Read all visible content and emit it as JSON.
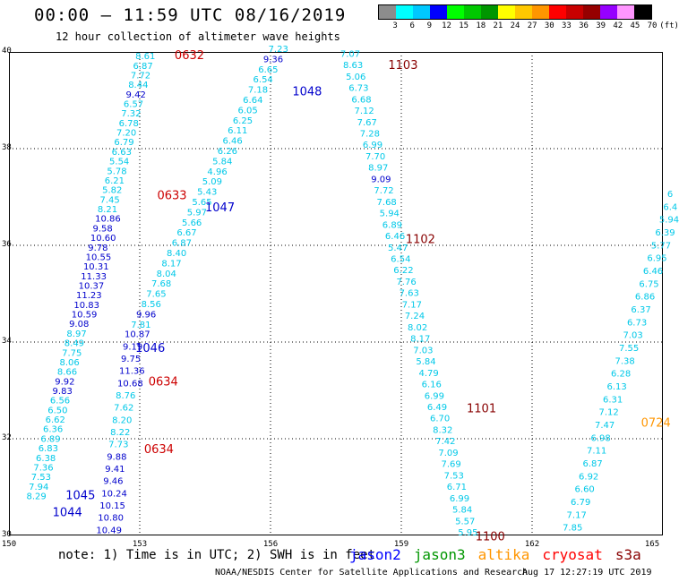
{
  "header": {
    "title": "00:00 – 11:59 UTC 08/16/2019",
    "subtitle": "12 hour collection of altimeter wave heights"
  },
  "legend": {
    "labels": [
      "3",
      "6",
      "9",
      "12",
      "15",
      "18",
      "21",
      "24",
      "27",
      "30",
      "33",
      "36",
      "39",
      "42",
      "45",
      "70",
      "(ft)"
    ],
    "colors": [
      "#8c8c8c",
      "#00ffff",
      "#00c8ff",
      "#0000ff",
      "#00ff00",
      "#00c800",
      "#009600",
      "#ffff00",
      "#ffc800",
      "#ff9600",
      "#ff0000",
      "#c80000",
      "#960000",
      "#9600ff",
      "#ff96ff",
      "#000000"
    ]
  },
  "axes": {
    "y_ticks": [
      "40",
      "38",
      "36",
      "34",
      "32",
      "30"
    ],
    "x_ticks": [
      "150",
      "153",
      "156",
      "159",
      "162",
      "165"
    ]
  },
  "tracks": {
    "time_labels": [
      {
        "text": "0632",
        "color": "#cc0000",
        "lon": 153.8,
        "lat": 39.85
      },
      {
        "text": "0633",
        "color": "#cc0000",
        "lon": 153.4,
        "lat": 36.95
      },
      {
        "text": "0634",
        "color": "#cc0000",
        "lon": 153.2,
        "lat": 33.1
      },
      {
        "text": "0634",
        "color": "#cc0000",
        "lon": 153.1,
        "lat": 31.7
      },
      {
        "text": "1048",
        "color": "#0000cc",
        "lon": 156.5,
        "lat": 39.1
      },
      {
        "text": "1047",
        "color": "#0000cc",
        "lon": 154.5,
        "lat": 36.7
      },
      {
        "text": "1046",
        "color": "#0000cc",
        "lon": 152.9,
        "lat": 33.8
      },
      {
        "text": "1045",
        "color": "#0000cc",
        "lon": 151.3,
        "lat": 30.75
      },
      {
        "text": "1044",
        "color": "#0000cc",
        "lon": 151.0,
        "lat": 30.4
      },
      {
        "text": "1103",
        "color": "#880000",
        "lon": 158.7,
        "lat": 39.65
      },
      {
        "text": "1102",
        "color": "#880000",
        "lon": 159.1,
        "lat": 36.05
      },
      {
        "text": "1101",
        "color": "#880000",
        "lon": 160.5,
        "lat": 32.55
      },
      {
        "text": "1100",
        "color": "#880000",
        "lon": 160.7,
        "lat": 29.9
      },
      {
        "text": "0724",
        "color": "#ff9600",
        "lon": 164.5,
        "lat": 32.25
      }
    ],
    "track_a": {
      "start": {
        "lon": 150.4,
        "lat": 30.75
      },
      "end": {
        "lon": 152.9,
        "lat": 39.85
      },
      "values": [
        "8.29",
        "7.94",
        "7.53",
        "7.36",
        "6.38",
        "6.83",
        "6.89",
        "6.36",
        "6.62",
        "6.50",
        "6.56",
        "9.83",
        "9.92",
        "8.66",
        "8.06",
        "7.75",
        "8.49",
        "8.97",
        "9.08",
        "10.59",
        "10.83",
        "11.23",
        "10.37",
        "11.33",
        "10.31",
        "10.55",
        "9.78",
        "10.60",
        "9.58",
        "10.86",
        "8.21",
        "7.45",
        "5.82",
        "6.21",
        "5.78",
        "5.54",
        "6.63",
        "6.79",
        "7.20",
        "6.78",
        "7.32",
        "6.57",
        "9.42",
        "8.44",
        "7.72",
        "6.87",
        "8.61"
      ]
    },
    "track_b": {
      "start": {
        "lon": 152.0,
        "lat": 30.05
      },
      "end": {
        "lon": 152.65,
        "lat": 34.1
      },
      "values": [
        "10.49",
        "10.80",
        "10.15",
        "10.24",
        "9.46",
        "9.41",
        "9.88",
        "7.73",
        "8.22",
        "8.20",
        "7.62",
        "8.76",
        "10.68",
        "11.36",
        "9.75",
        "9.19",
        "10.87"
      ]
    },
    "track_c": {
      "start": {
        "lon": 152.8,
        "lat": 34.3
      },
      "end": {
        "lon": 155.95,
        "lat": 40.0
      },
      "values": [
        "7.81",
        "9.96",
        "8.56",
        "7.65",
        "7.68",
        "8.04",
        "8.17",
        "8.40",
        "6.87",
        "6.67",
        "5.66",
        "5.97",
        "5.65",
        "5.43",
        "5.09",
        "4.96",
        "5.84",
        "6.26",
        "6.46",
        "6.11",
        "6.25",
        "6.05",
        "6.64",
        "7.18",
        "6.54",
        "6.65",
        "9.36",
        "7.23"
      ]
    },
    "track_d": {
      "start": {
        "lon": 157.6,
        "lat": 39.9
      },
      "end": {
        "lon": 160.3,
        "lat": 30.0
      },
      "values": [
        "7.07",
        "8.63",
        "5.06",
        "6.73",
        "6.68",
        "7.12",
        "7.67",
        "7.28",
        "6.99",
        "7.70",
        "8.97",
        "9.09",
        "7.72",
        "7.68",
        "5.94",
        "6.89",
        "6.46",
        "5.47",
        "6.54",
        "6.22",
        "7.76",
        "7.63",
        "7.17",
        "7.24",
        "8.02",
        "8.17",
        "7.03",
        "5.84",
        "4.79",
        "6.16",
        "6.99",
        "6.49",
        "6.70",
        "8.32",
        "7.42",
        "7.09",
        "7.69",
        "7.53",
        "6.71",
        "6.99",
        "5.84",
        "5.57",
        "5.95"
      ]
    },
    "track_e": {
      "start": {
        "lon": 162.7,
        "lat": 30.1
      },
      "end": {
        "lon": 165.1,
        "lat": 37.0
      },
      "values": [
        "7.85",
        "7.17",
        "6.79",
        "6.60",
        "6.92",
        "6.87",
        "7.11",
        "6.98",
        "7.47",
        "7.12",
        "6.31",
        "6.13",
        "6.28",
        "7.38",
        "7.55",
        "7.03",
        "6.73",
        "6.37",
        "6.86",
        "6.75",
        "6.46",
        "6.95",
        "5.77",
        "6.39",
        "5.94",
        "6.4",
        "6"
      ]
    }
  },
  "notes": {
    "note": "note:  1) Time is in UTC; 2) SWH is in feet",
    "satellites": [
      {
        "name": "jason2",
        "color": "#0000ff"
      },
      {
        "name": "jason3",
        "color": "#009600"
      },
      {
        "name": "altika",
        "color": "#ff9600"
      },
      {
        "name": "cryosat",
        "color": "#ff0000"
      },
      {
        "name": "s3a",
        "color": "#880000"
      }
    ]
  },
  "footer": {
    "left": "NOAA/NESDIS Center for Satellite Applications and Research",
    "right": "Aug 17 12:27:19 UTC 2019"
  }
}
